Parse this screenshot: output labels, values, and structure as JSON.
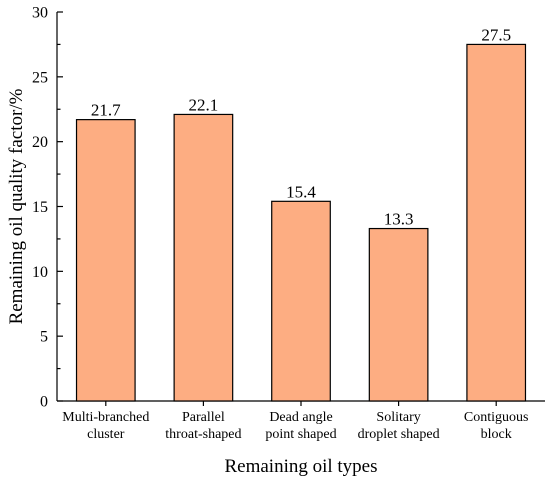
{
  "chart_data": {
    "type": "bar",
    "categories": [
      [
        "Multi-branched",
        "cluster"
      ],
      [
        "Parallel",
        "throat-shaped"
      ],
      [
        "Dead angle",
        "point shaped"
      ],
      [
        "Solitary",
        "droplet shaped"
      ],
      [
        "Contiguous",
        "block"
      ]
    ],
    "values": [
      21.7,
      22.1,
      15.4,
      13.3,
      27.5
    ],
    "data_labels": [
      "21.7",
      "22.1",
      "15.4",
      "13.3",
      "27.5"
    ],
    "title": "",
    "xlabel": "Remaining oil types",
    "ylabel": "Remaining oil quality factor/%",
    "ylim": [
      0,
      30
    ],
    "yticks": [
      0,
      5,
      10,
      15,
      20,
      25,
      30
    ],
    "bar_color": "#FDAD82",
    "bar_edge_color": "#000000",
    "grid": false,
    "legend": "none"
  }
}
